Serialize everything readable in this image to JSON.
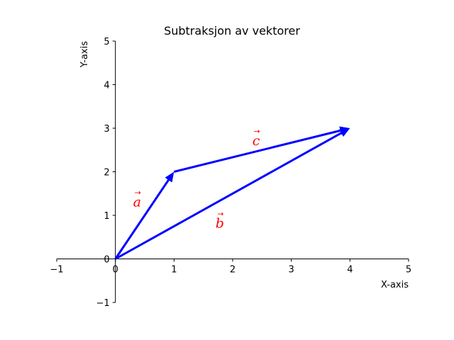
{
  "chart_data": {
    "type": "vector",
    "title": "Subtraksjon av vektorer",
    "xlabel": "X-axis",
    "ylabel": "Y-axis",
    "xlim": [
      -1,
      5
    ],
    "ylim": [
      -1,
      5
    ],
    "xticks": [
      -1,
      0,
      1,
      2,
      3,
      4,
      5
    ],
    "yticks": [
      -1,
      0,
      1,
      2,
      3,
      4,
      5
    ],
    "grid": false,
    "vectors": [
      {
        "id": "a",
        "label": "a",
        "from": [
          0,
          0
        ],
        "to": [
          1,
          2
        ],
        "label_at": [
          0.37,
          1.32
        ]
      },
      {
        "id": "b",
        "label": "b",
        "from": [
          0,
          0
        ],
        "to": [
          4,
          3
        ],
        "label_at": [
          1.78,
          0.83
        ]
      },
      {
        "id": "c",
        "label": "c",
        "from": [
          1,
          2
        ],
        "to": [
          4,
          3
        ],
        "label_at": [
          2.4,
          2.72
        ]
      }
    ],
    "colors": {
      "vector": "#0000ff",
      "label": "#ff0000",
      "axis": "#000000"
    }
  }
}
